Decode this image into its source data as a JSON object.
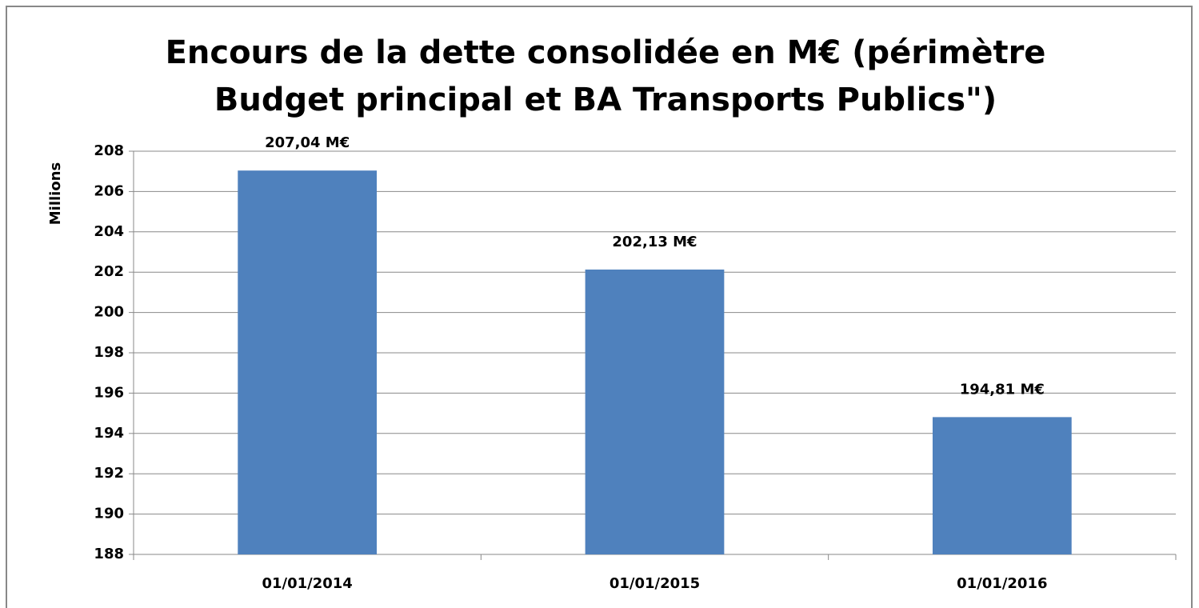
{
  "chart_data": {
    "type": "bar",
    "title": [
      "Encours de la dette consolidée en M€ (périmètre",
      "Budget principal et BA Transports Publics\")"
    ],
    "y_label": "Millions",
    "categories": [
      "01/01/2014",
      "01/01/2015",
      "01/01/2016"
    ],
    "values": [
      207.04,
      202.13,
      194.81
    ],
    "value_labels": [
      "207,04 M€",
      "202,13 M€",
      "194,81 M€"
    ],
    "color": "#4f81bd",
    "ylim": [
      188,
      208
    ],
    "yticks": [
      188,
      190,
      192,
      194,
      196,
      198,
      200,
      202,
      204,
      206,
      208
    ],
    "grid": true
  }
}
